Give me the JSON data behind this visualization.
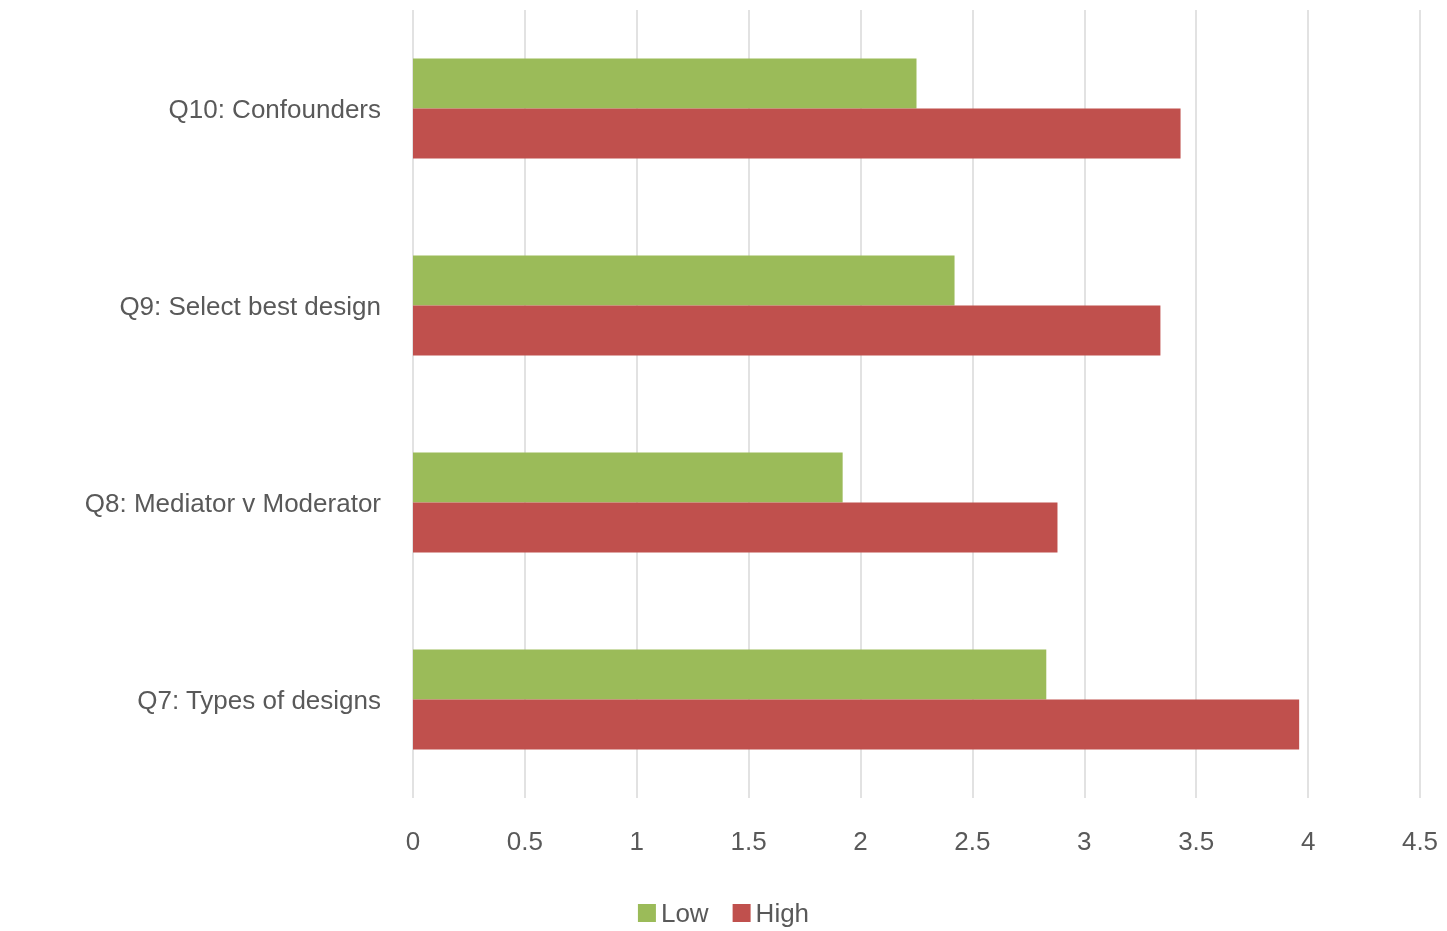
{
  "chart_data": {
    "type": "bar",
    "orientation": "horizontal",
    "categories": [
      "Q10: Confounders",
      "Q9: Select best design",
      "Q8: Mediator v Moderator",
      "Q7: Types of designs"
    ],
    "series": [
      {
        "name": "Low",
        "color": "#9bbb59",
        "values": [
          2.25,
          2.42,
          1.92,
          2.83
        ]
      },
      {
        "name": "High",
        "color": "#c0504d",
        "values": [
          3.43,
          3.34,
          2.88,
          3.96
        ]
      }
    ],
    "xlim": [
      0,
      4.5
    ],
    "xticks": [
      0,
      0.5,
      1,
      1.5,
      2,
      2.5,
      3,
      3.5,
      4,
      4.5
    ],
    "grid": "x",
    "legend": "bottom"
  }
}
